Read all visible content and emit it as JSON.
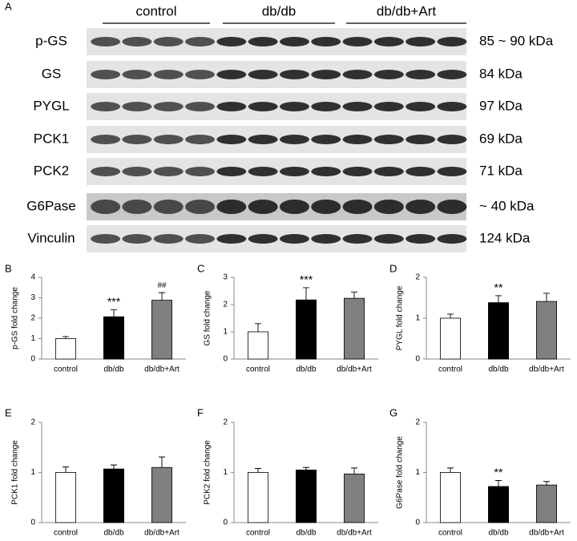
{
  "blot": {
    "panel": "A",
    "groups": [
      "control",
      "db/db",
      "db/db+Art"
    ],
    "rows": [
      {
        "protein": "p-GS",
        "size": "85 ~ 90 kDa"
      },
      {
        "protein": "GS",
        "size": "84 kDa"
      },
      {
        "protein": "PYGL",
        "size": "97 kDa"
      },
      {
        "protein": "PCK1",
        "size": "69 kDa"
      },
      {
        "protein": "PCK2",
        "size": "71 kDa"
      },
      {
        "protein": "G6Pase",
        "size": "~ 40 kDa"
      },
      {
        "protein": "Vinculin",
        "size": "124 kDa"
      }
    ]
  },
  "chart_data": [
    {
      "type": "bar",
      "panel": "B",
      "y_label": "p-GS fold change",
      "categories": [
        "control",
        "db/db",
        "db/db+Art"
      ],
      "values": [
        1.0,
        2.07,
        2.88
      ],
      "errors": [
        0.1,
        0.35,
        0.37
      ],
      "colors": [
        "#ffffff",
        "#000000",
        "#808080"
      ],
      "annotations": [
        null,
        "***",
        "##"
      ],
      "ylim": [
        0,
        4
      ],
      "yticks": [
        0,
        1,
        2,
        3,
        4
      ]
    },
    {
      "type": "bar",
      "panel": "C",
      "y_label": "GS fold change",
      "categories": [
        "control",
        "db/db",
        "db/db+Art"
      ],
      "values": [
        1.0,
        2.17,
        2.23
      ],
      "errors": [
        0.3,
        0.45,
        0.23
      ],
      "colors": [
        "#ffffff",
        "#000000",
        "#808080"
      ],
      "annotations": [
        null,
        "***",
        null
      ],
      "ylim": [
        0,
        3
      ],
      "yticks": [
        0,
        1,
        2,
        3
      ]
    },
    {
      "type": "bar",
      "panel": "D",
      "y_label": "PYGL fold change",
      "categories": [
        "control",
        "db/db",
        "db/db+Art"
      ],
      "values": [
        1.0,
        1.38,
        1.41
      ],
      "errors": [
        0.1,
        0.17,
        0.2
      ],
      "colors": [
        "#ffffff",
        "#000000",
        "#808080"
      ],
      "annotations": [
        null,
        "**",
        null
      ],
      "ylim": [
        0,
        2
      ],
      "yticks": [
        0,
        1,
        2
      ]
    },
    {
      "type": "bar",
      "panel": "E",
      "y_label": "PCK1 fold change",
      "categories": [
        "control",
        "db/db",
        "db/db+Art"
      ],
      "values": [
        1.0,
        1.07,
        1.1
      ],
      "errors": [
        0.11,
        0.08,
        0.21
      ],
      "colors": [
        "#ffffff",
        "#000000",
        "#808080"
      ],
      "annotations": [
        null,
        null,
        null
      ],
      "ylim": [
        0,
        2
      ],
      "yticks": [
        0,
        1,
        2
      ]
    },
    {
      "type": "bar",
      "panel": "F",
      "y_label": "PCK2 fold change",
      "categories": [
        "control",
        "db/db",
        "db/db+Art"
      ],
      "values": [
        1.0,
        1.05,
        0.97
      ],
      "errors": [
        0.08,
        0.05,
        0.12
      ],
      "colors": [
        "#ffffff",
        "#000000",
        "#808080"
      ],
      "annotations": [
        null,
        null,
        null
      ],
      "ylim": [
        0,
        2
      ],
      "yticks": [
        0,
        1,
        2
      ]
    },
    {
      "type": "bar",
      "panel": "G",
      "y_label": "G6Pase fold change",
      "categories": [
        "control",
        "db/db",
        "db/db+Art"
      ],
      "values": [
        1.0,
        0.72,
        0.75
      ],
      "errors": [
        0.09,
        0.12,
        0.07
      ],
      "colors": [
        "#ffffff",
        "#000000",
        "#808080"
      ],
      "annotations": [
        null,
        "**",
        null
      ],
      "ylim": [
        0,
        2
      ],
      "yticks": [
        0,
        1,
        2
      ]
    }
  ]
}
